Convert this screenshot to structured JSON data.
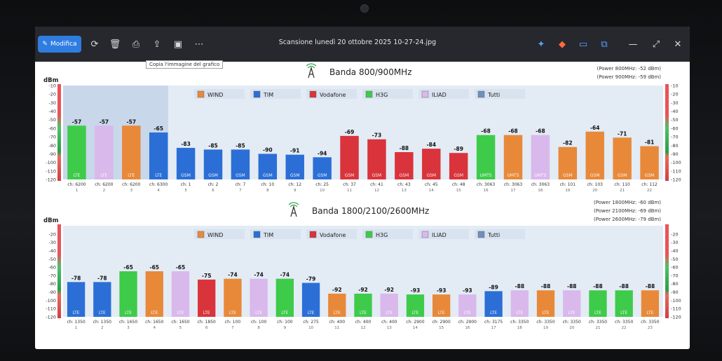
{
  "window": {
    "title": "Scansione lunedì 20 ottobre 2025 10-27-24.jpg",
    "edit_label": "Modifica",
    "tooltip": "Copia l'immagine del grafico"
  },
  "legend": [
    {
      "name": "WIND",
      "color": "#e8893a"
    },
    {
      "name": "TIM",
      "color": "#2b6fd6"
    },
    {
      "name": "Vodafone",
      "color": "#d9343b"
    },
    {
      "name": "H3G",
      "color": "#3ecb4a"
    },
    {
      "name": "ILIAD",
      "color": "#d9b8ec"
    },
    {
      "name": "Tutti",
      "color": "#6f8fbf"
    }
  ],
  "chart_data": [
    {
      "type": "bar",
      "title": "Banda 800/900MHz",
      "ylabel": "dBm",
      "ylim": [
        -120,
        -10
      ],
      "yticks": [
        "-10",
        "-20",
        "-30",
        "-40",
        "-50",
        "-60",
        "-70",
        "-80",
        "-90",
        "-100",
        "-110",
        "-120"
      ],
      "power": [
        "(Power 800MHz: -52 dBm)",
        "(Power 900MHz: -59 dBm)"
      ],
      "bars": [
        {
          "ch": "ch: 6200",
          "n": "1",
          "value": -57,
          "label": "-57",
          "tech": "LTE",
          "op": "H3G"
        },
        {
          "ch": "ch: 6200",
          "n": "2",
          "value": -57,
          "label": "-57",
          "tech": "LTE",
          "op": "ILIAD"
        },
        {
          "ch": "ch: 6200",
          "n": "3",
          "value": -57,
          "label": "-57",
          "tech": "LTE",
          "op": "WIND"
        },
        {
          "ch": "ch: 6300",
          "n": "4",
          "value": -65,
          "label": "-65",
          "tech": "LTE",
          "op": "TIM"
        },
        {
          "ch": "ch: 1",
          "n": "5",
          "value": -83,
          "label": "-83",
          "tech": "GSM",
          "op": "TIM"
        },
        {
          "ch": "ch: 2",
          "n": "6",
          "value": -85,
          "label": "-85",
          "tech": "GSM",
          "op": "TIM"
        },
        {
          "ch": "ch: 7",
          "n": "7",
          "value": -85,
          "label": "-85",
          "tech": "GSM",
          "op": "TIM"
        },
        {
          "ch": "ch: 10",
          "n": "8",
          "value": -90,
          "label": "-90",
          "tech": "GSM",
          "op": "TIM"
        },
        {
          "ch": "ch: 12",
          "n": "9",
          "value": -91,
          "label": "-91",
          "tech": "GSM",
          "op": "TIM"
        },
        {
          "ch": "ch: 25",
          "n": "10",
          "value": -94,
          "label": "-94",
          "tech": "GSM",
          "op": "TIM"
        },
        {
          "ch": "ch: 37",
          "n": "11",
          "value": -69,
          "label": "-69",
          "tech": "GSM",
          "op": "Vodafone"
        },
        {
          "ch": "ch: 41",
          "n": "12",
          "value": -73,
          "label": "-73",
          "tech": "GSM",
          "op": "Vodafone"
        },
        {
          "ch": "ch: 43",
          "n": "13",
          "value": -88,
          "label": "-88",
          "tech": "GSM",
          "op": "Vodafone"
        },
        {
          "ch": "ch: 45",
          "n": "14",
          "value": -84,
          "label": "-84",
          "tech": "GSM",
          "op": "Vodafone"
        },
        {
          "ch": "ch: 48",
          "n": "15",
          "value": -89,
          "label": "-89",
          "tech": "GSM",
          "op": "Vodafone"
        },
        {
          "ch": "ch: 3063",
          "n": "16",
          "value": -68,
          "label": "-68",
          "tech": "UMTS",
          "op": "H3G"
        },
        {
          "ch": "ch: 3063",
          "n": "17",
          "value": -68,
          "label": "-68",
          "tech": "UMTS",
          "op": "WIND"
        },
        {
          "ch": "ch: 3063",
          "n": "18",
          "value": -68,
          "label": "-68",
          "tech": "UMTS",
          "op": "ILIAD"
        },
        {
          "ch": "ch: 101",
          "n": "19",
          "value": -82,
          "label": "-82",
          "tech": "GSM",
          "op": "WIND"
        },
        {
          "ch": "ch: 103",
          "n": "20",
          "value": -64,
          "label": "-64",
          "tech": "GSM",
          "op": "WIND"
        },
        {
          "ch": "ch: 110",
          "n": "21",
          "value": -71,
          "label": "-71",
          "tech": "GSM",
          "op": "WIND"
        },
        {
          "ch": "ch: 112",
          "n": "22",
          "value": -81,
          "label": "-81",
          "tech": "GSM",
          "op": "WIND"
        }
      ]
    },
    {
      "type": "bar",
      "title": "Banda 1800/2100/2600MHz",
      "ylabel": "dBm",
      "ylim": [
        -120,
        -10
      ],
      "yticks": [
        "-20",
        "-30",
        "-40",
        "-50",
        "-60",
        "-70",
        "-80",
        "-90",
        "-100",
        "-110",
        "-120"
      ],
      "power": [
        "(Power 1800MHz: -60 dBm)",
        "(Power 2100MHz: -69 dBm)",
        "(Power 2600MHz: -79 dBm)"
      ],
      "bars": [
        {
          "ch": "ch: 1350",
          "n": "1",
          "value": -78,
          "label": "-78",
          "tech": "LTE",
          "op": "TIM"
        },
        {
          "ch": "ch: 1350",
          "n": "2",
          "value": -78,
          "label": "-78",
          "tech": "LTE",
          "op": "TIM"
        },
        {
          "ch": "ch: 1650",
          "n": "3",
          "value": -65,
          "label": "-65",
          "tech": "LTE",
          "op": "H3G"
        },
        {
          "ch": "ch: 1650",
          "n": "4",
          "value": -65,
          "label": "-65",
          "tech": "LTE",
          "op": "WIND"
        },
        {
          "ch": "ch: 1650",
          "n": "5",
          "value": -65,
          "label": "-65",
          "tech": "LTE",
          "op": "ILIAD"
        },
        {
          "ch": "ch: 1850",
          "n": "6",
          "value": -75,
          "label": "-75",
          "tech": "LTE",
          "op": "Vodafone"
        },
        {
          "ch": "ch: 100",
          "n": "7",
          "value": -74,
          "label": "-74",
          "tech": "LTE",
          "op": "WIND"
        },
        {
          "ch": "ch: 100",
          "n": "8",
          "value": -74,
          "label": "-74",
          "tech": "LTE",
          "op": "ILIAD"
        },
        {
          "ch": "ch: 100",
          "n": "9",
          "value": -74,
          "label": "-74",
          "tech": "LTE",
          "op": "H3G"
        },
        {
          "ch": "ch: 275",
          "n": "10",
          "value": -79,
          "label": "-79",
          "tech": "LTE",
          "op": "TIM"
        },
        {
          "ch": "ch: 400",
          "n": "11",
          "value": -92,
          "label": "-92",
          "tech": "LTE",
          "op": "WIND"
        },
        {
          "ch": "ch: 400",
          "n": "12",
          "value": -92,
          "label": "-92",
          "tech": "LTE",
          "op": "H3G"
        },
        {
          "ch": "ch: 400",
          "n": "13",
          "value": -92,
          "label": "-92",
          "tech": "LTE",
          "op": "ILIAD"
        },
        {
          "ch": "ch: 2900",
          "n": "14",
          "value": -93,
          "label": "-93",
          "tech": "LTE",
          "op": "H3G"
        },
        {
          "ch": "ch: 2900",
          "n": "15",
          "value": -93,
          "label": "-93",
          "tech": "LTE",
          "op": "WIND"
        },
        {
          "ch": "ch: 2900",
          "n": "16",
          "value": -93,
          "label": "-93",
          "tech": "LTE",
          "op": "ILIAD"
        },
        {
          "ch": "ch: 3175",
          "n": "17",
          "value": -89,
          "label": "-89",
          "tech": "LTE",
          "op": "TIM"
        },
        {
          "ch": "ch: 3350",
          "n": "18",
          "value": -88,
          "label": "-88",
          "tech": "LTE",
          "op": "ILIAD"
        },
        {
          "ch": "ch: 3350",
          "n": "19",
          "value": -88,
          "label": "-88",
          "tech": "LTE",
          "op": "WIND"
        },
        {
          "ch": "ch: 3350",
          "n": "20",
          "value": -88,
          "label": "-88",
          "tech": "LTE",
          "op": "ILIAD"
        },
        {
          "ch": "ch: 3350",
          "n": "21",
          "value": -88,
          "label": "-88",
          "tech": "LTE",
          "op": "H3G"
        },
        {
          "ch": "ch: 3350",
          "n": "22",
          "value": -88,
          "label": "-88",
          "tech": "LTE",
          "op": "H3G"
        },
        {
          "ch": "ch: 3350",
          "n": "23",
          "value": -88,
          "label": "-88",
          "tech": "LTE",
          "op": "WIND"
        }
      ]
    }
  ]
}
